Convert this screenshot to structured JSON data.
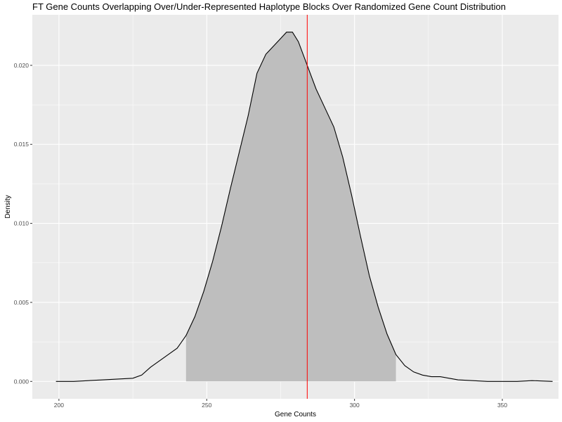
{
  "chart_data": {
    "type": "area",
    "title": "FT Gene Counts Overlapping Over/Under-Represented Haplotype Blocks Over Randomized Gene Count Distribution",
    "xlabel": "Gene Counts",
    "ylabel": "Density",
    "xlim": [
      191,
      369
    ],
    "ylim": [
      -0.0011,
      0.0232
    ],
    "x_ticks": [
      200,
      250,
      300,
      350
    ],
    "x_tick_labels": [
      "200",
      "250",
      "300",
      "350"
    ],
    "y_ticks": [
      0.0,
      0.005,
      0.01,
      0.015,
      0.02
    ],
    "y_tick_labels": [
      "0.000",
      "0.005",
      "0.010",
      "0.015",
      "0.020"
    ],
    "grid": true,
    "legend": "none",
    "series": [
      {
        "x": [
          199,
          205,
          210,
          215,
          220,
          225,
          228,
          231,
          234,
          237,
          240,
          243,
          246,
          249,
          252,
          255,
          258,
          261,
          264,
          267,
          270,
          273,
          275,
          277,
          279,
          281,
          283,
          285,
          287,
          290,
          293,
          296,
          299,
          302,
          305,
          308,
          311,
          314,
          317,
          320,
          323,
          326,
          329,
          332,
          335,
          340,
          345,
          350,
          355,
          360,
          367
        ],
        "y": [
          0.0,
          0.0,
          5e-05,
          0.0001,
          0.00015,
          0.0002,
          0.0004,
          0.0009,
          0.0013,
          0.0017,
          0.0021,
          0.0029,
          0.0041,
          0.0057,
          0.0076,
          0.0098,
          0.0122,
          0.0145,
          0.0168,
          0.0195,
          0.0207,
          0.0213,
          0.0217,
          0.0221,
          0.0221,
          0.0215,
          0.0205,
          0.0195,
          0.0185,
          0.0173,
          0.0161,
          0.0142,
          0.0118,
          0.0092,
          0.0067,
          0.0047,
          0.003,
          0.0017,
          0.001,
          0.0006,
          0.0004,
          0.0003,
          0.0003,
          0.0002,
          0.0001,
          5e-05,
          0.0,
          0.0,
          0.0,
          5e-05,
          0.0
        ]
      }
    ],
    "shaded_interval": [
      243,
      314
    ],
    "reference_line_x": 284,
    "colors": {
      "panel_background": "#ebebeb",
      "grid": "#ffffff",
      "shade": "#bebebe",
      "density_line": "#000000",
      "reference_line": "#ff0000"
    }
  }
}
